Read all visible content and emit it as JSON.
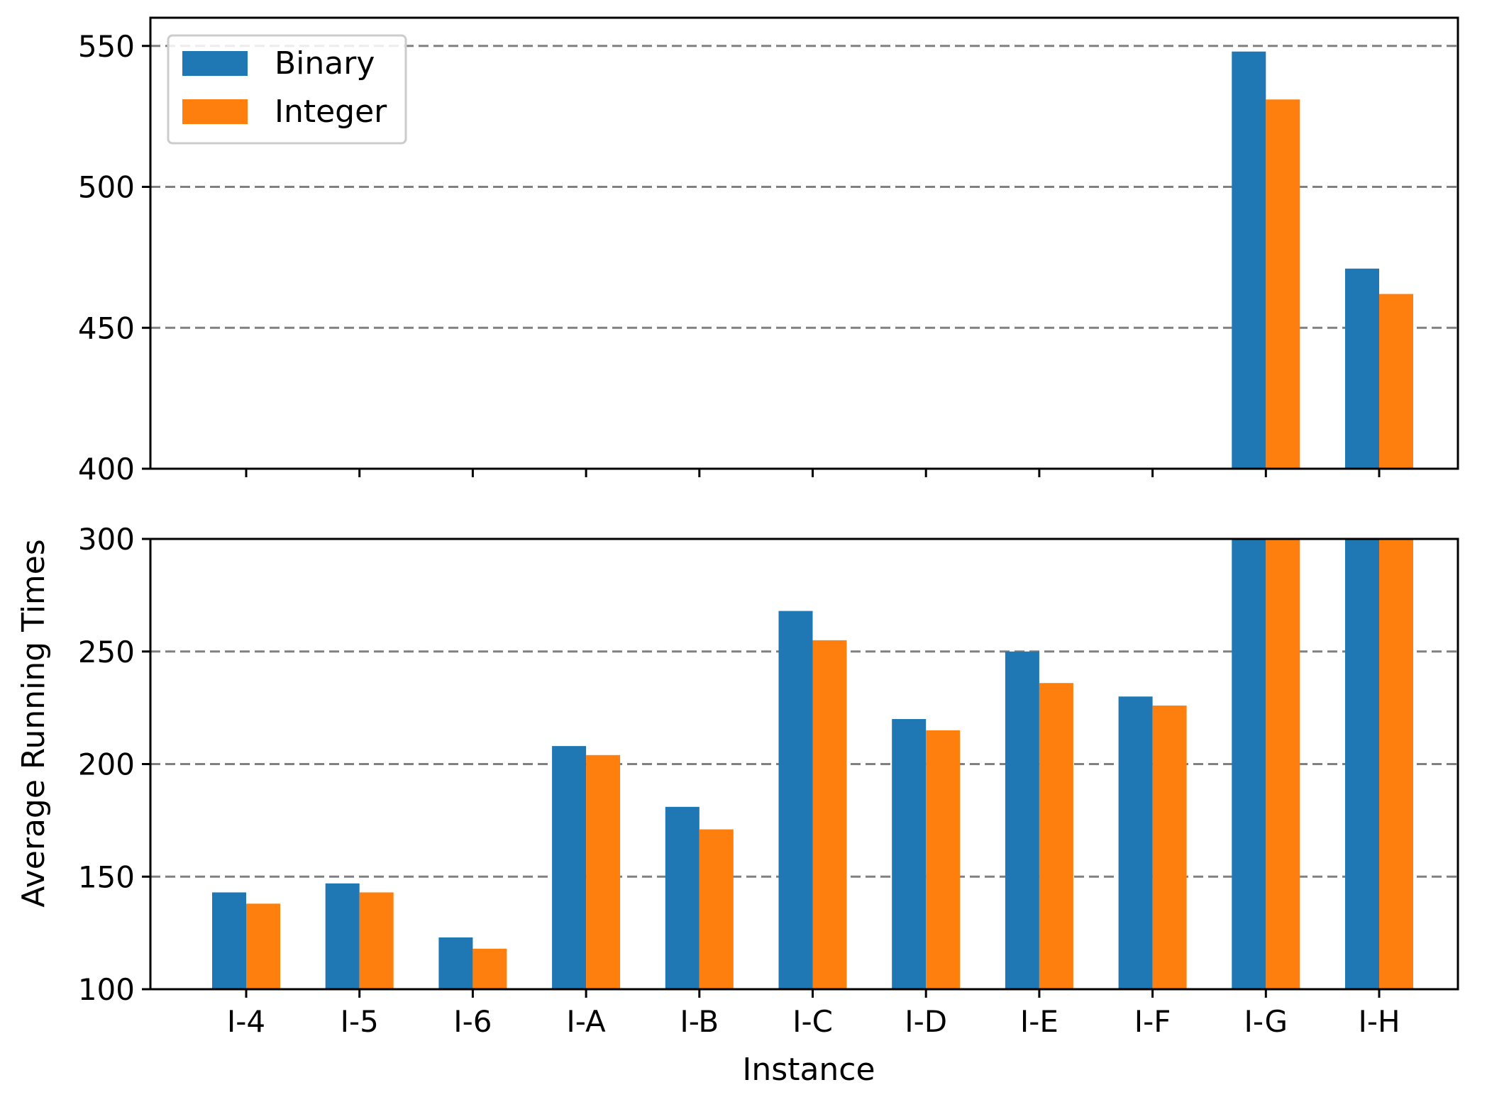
{
  "chart_data": {
    "type": "bar",
    "broken_axis": true,
    "categories": [
      "I-4",
      "I-5",
      "I-6",
      "I-A",
      "I-B",
      "I-C",
      "I-D",
      "I-E",
      "I-F",
      "I-G",
      "I-H"
    ],
    "series": [
      {
        "name": "Binary",
        "color": "#1f77b4",
        "values": [
          143,
          147,
          123,
          208,
          181,
          268,
          220,
          250,
          230,
          548,
          471
        ]
      },
      {
        "name": "Integer",
        "color": "#ff7f0e",
        "values": [
          138,
          143,
          118,
          204,
          171,
          255,
          215,
          236,
          226,
          531,
          462
        ]
      }
    ],
    "xlabel": "Instance",
    "ylabel": "Average Running Times",
    "panels": [
      {
        "name": "upper",
        "ylim": [
          400,
          560
        ],
        "yticks": [
          400,
          450,
          500,
          550
        ],
        "show_xtick_labels": false
      },
      {
        "name": "lower",
        "ylim": [
          100,
          300
        ],
        "yticks": [
          100,
          150,
          200,
          250,
          300
        ],
        "show_xtick_labels": true
      }
    ],
    "grid": "horizontal-dashed",
    "legend": {
      "location": "top-left",
      "entries": [
        "Binary",
        "Integer"
      ]
    }
  }
}
